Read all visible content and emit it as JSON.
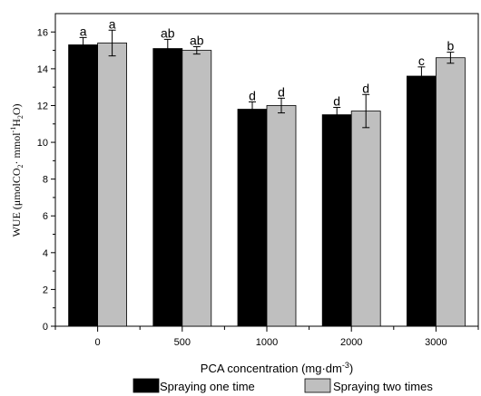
{
  "chart_data": {
    "type": "bar",
    "categories": [
      "0",
      "500",
      "1000",
      "2000",
      "3000"
    ],
    "xlabel": {
      "main": "PCA concentration (mg·dm",
      "sup": "-3",
      "end": ")"
    },
    "ylabel": {
      "p1": "WUE (μmolCO",
      "s1": "2",
      "p2": "· mmol",
      "s2": "-1",
      "p3": "H",
      "s3": "2",
      "p4": "O)"
    },
    "ylim": [
      0,
      17
    ],
    "yticks": [
      0,
      2,
      4,
      6,
      8,
      10,
      12,
      14,
      16
    ],
    "series": [
      {
        "name": "Spraying one time",
        "color": "#000000",
        "values": [
          15.3,
          15.1,
          11.8,
          11.5,
          13.6
        ],
        "errors": [
          0.4,
          0.5,
          0.4,
          0.4,
          0.5
        ],
        "labels": [
          "a",
          "ab",
          "d",
          "d",
          "c"
        ]
      },
      {
        "name": "Spraying two times",
        "color": "#bfbfbf",
        "values": [
          15.4,
          15.0,
          12.0,
          11.7,
          14.6
        ],
        "errors": [
          0.7,
          0.2,
          0.4,
          0.9,
          0.3
        ],
        "labels": [
          "a",
          "ab",
          "d",
          "d",
          "b"
        ]
      }
    ],
    "legend_position": "bottom"
  }
}
